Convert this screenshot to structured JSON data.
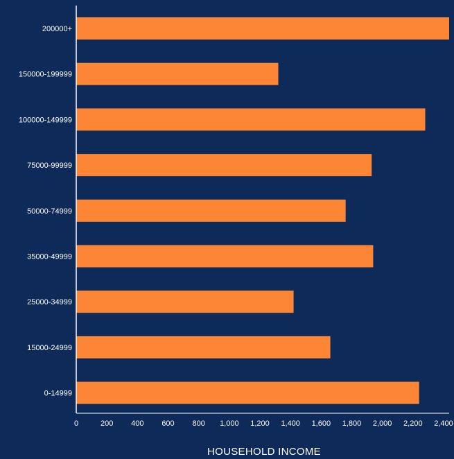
{
  "colors": {
    "background": "#0e2a58",
    "bar": "#fd8636",
    "text": "#ffffff",
    "axis": "#ffffff"
  },
  "chart_data": {
    "type": "bar",
    "orientation": "horizontal",
    "title": "",
    "xlabel": "HOUSEHOLD INCOME",
    "ylabel": "",
    "categories": [
      "200000+",
      "150000-199999",
      "100000-149999",
      "75000-99999",
      "50000-74999",
      "35000-49999",
      "25000-34999",
      "15000-24999",
      "0-14999"
    ],
    "values": [
      2440,
      1320,
      2280,
      1930,
      1760,
      1940,
      1420,
      1660,
      2240
    ],
    "xlim": [
      0,
      2400
    ],
    "xticks": [
      0,
      200,
      400,
      600,
      800,
      1000,
      1200,
      1400,
      1600,
      1800,
      2000,
      2200,
      2400
    ],
    "xtick_labels": [
      "0",
      "200",
      "400",
      "600",
      "800",
      "1,000",
      "1,200",
      "1,400",
      "1,600",
      "1,800",
      "2,000",
      "2,200",
      "2,400"
    ],
    "grid": false,
    "legend": "none"
  }
}
